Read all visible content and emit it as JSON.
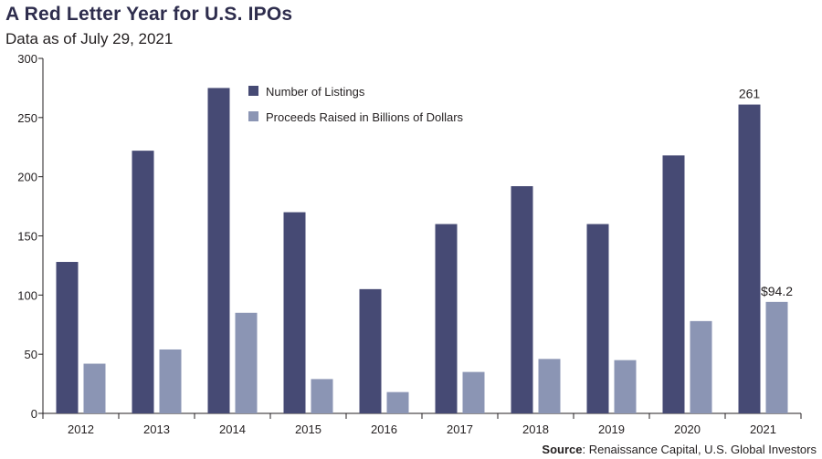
{
  "header": {
    "title": "A Red Letter Year for U.S. IPOs",
    "subtitle": "Data as of July 29, 2021"
  },
  "footer": {
    "source_label": "Source",
    "source_text": ": Renaissance Capital, U.S. Global Investors"
  },
  "colors": {
    "listings": "#464a74",
    "proceeds": "#8b95b4",
    "axis": "#231f20",
    "title": "#2e2d4d"
  },
  "chart_data": {
    "type": "bar",
    "title": "A Red Letter Year for U.S. IPOs",
    "subtitle": "Data as of July 29, 2021",
    "categories": [
      "2012",
      "2013",
      "2014",
      "2015",
      "2016",
      "2017",
      "2018",
      "2019",
      "2020",
      "2021"
    ],
    "series": [
      {
        "name": "Number of Listings",
        "values": [
          128,
          222,
          275,
          170,
          105,
          160,
          192,
          160,
          218,
          261
        ]
      },
      {
        "name": "Proceeds Raised in Billions of Dollars",
        "values": [
          42,
          54,
          85,
          29,
          18,
          35,
          46,
          45,
          78,
          94.2
        ]
      }
    ],
    "ylim": [
      0,
      300
    ],
    "yticks": [
      0,
      50,
      100,
      150,
      200,
      250,
      300
    ],
    "data_labels": [
      {
        "series": 0,
        "category": "2021",
        "text": "261"
      },
      {
        "series": 1,
        "category": "2021",
        "text": "$94.2"
      }
    ],
    "legend_position": "top-center",
    "grid": false,
    "xlabel": "",
    "ylabel": ""
  }
}
